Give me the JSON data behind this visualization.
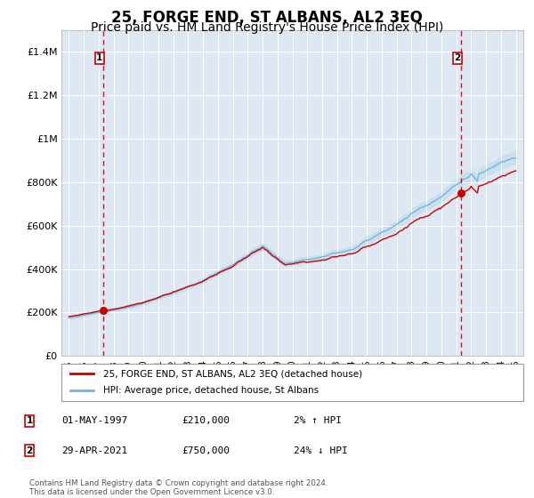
{
  "title": "25, FORGE END, ST ALBANS, AL2 3EQ",
  "subtitle": "Price paid vs. HM Land Registry's House Price Index (HPI)",
  "title_fontsize": 12,
  "subtitle_fontsize": 10,
  "ylim": [
    0,
    1500000
  ],
  "xlim": [
    1994.5,
    2025.5
  ],
  "yticks": [
    0,
    200000,
    400000,
    600000,
    800000,
    1000000,
    1200000,
    1400000
  ],
  "ytick_labels": [
    "£0",
    "£200K",
    "£400K",
    "£600K",
    "£800K",
    "£1M",
    "£1.2M",
    "£1.4M"
  ],
  "xticks": [
    1995,
    1996,
    1997,
    1998,
    1999,
    2000,
    2001,
    2002,
    2003,
    2004,
    2005,
    2006,
    2007,
    2008,
    2009,
    2010,
    2011,
    2012,
    2013,
    2014,
    2015,
    2016,
    2017,
    2018,
    2019,
    2020,
    2021,
    2022,
    2023,
    2024,
    2025
  ],
  "hpi_fill_color": "#c8dff0",
  "hpi_line_color": "#7ab3d4",
  "price_color": "#cc0000",
  "background_color": "#dde8f3",
  "sale1_x": 1997.33,
  "sale1_y": 210000,
  "sale2_x": 2021.33,
  "sale2_y": 750000,
  "legend_label1": "25, FORGE END, ST ALBANS, AL2 3EQ (detached house)",
  "legend_label2": "HPI: Average price, detached house, St Albans",
  "footnote": "Contains HM Land Registry data © Crown copyright and database right 2024.\nThis data is licensed under the Open Government Licence v3.0.",
  "table_data": [
    {
      "num": "1",
      "date": "01-MAY-1997",
      "price": "£210,000",
      "hpi": "2% ↑ HPI"
    },
    {
      "num": "2",
      "date": "29-APR-2021",
      "price": "£750,000",
      "hpi": "24% ↓ HPI"
    }
  ]
}
